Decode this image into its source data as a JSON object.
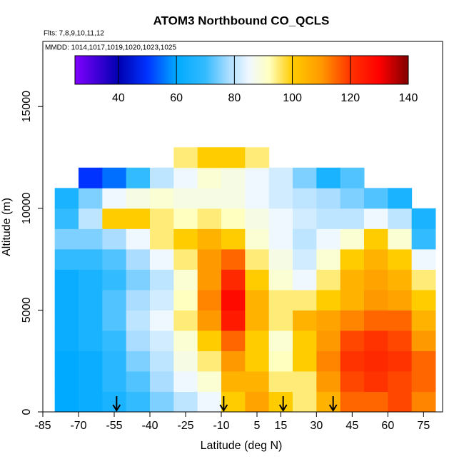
{
  "chart_data": {
    "type": "heatmap",
    "title": "ATOM3 Northbound CO_QCLS",
    "subtitle": "Flts: 7,8,9,10,11,12",
    "annotation": "MMDD: 1014,1017,1019,1020,1023,1025",
    "xlabel": "Latitude (deg N)",
    "ylabel": "Altitude (m)",
    "xlim": [
      -85,
      83
    ],
    "ylim": [
      0,
      18200
    ],
    "xticks": [
      -85,
      -70,
      -55,
      -40,
      -25,
      -10,
      5,
      15,
      30,
      45,
      60,
      75
    ],
    "yticks": [
      0,
      5000,
      10000,
      15000
    ],
    "xbins": [
      -80,
      -70,
      -60,
      -50,
      -40,
      -30,
      -20,
      -10,
      0,
      10,
      20,
      30,
      40,
      50,
      60,
      70,
      80
    ],
    "ybins": [
      0,
      1000,
      2000,
      3000,
      4000,
      5000,
      6000,
      7000,
      8000,
      9000,
      10000,
      11000,
      12000,
      13000
    ],
    "values": [
      [
        60,
        62,
        65,
        70,
        75,
        80,
        85,
        100,
        108,
        100,
        95,
        105,
        115,
        115,
        118,
        112
      ],
      [
        60,
        62,
        68,
        72,
        78,
        85,
        90,
        105,
        105,
        95,
        95,
        110,
        118,
        120,
        118,
        115
      ],
      [
        60,
        62,
        68,
        75,
        80,
        88,
        95,
        110,
        100,
        92,
        100,
        112,
        120,
        122,
        120,
        115
      ],
      [
        62,
        65,
        70,
        78,
        82,
        90,
        100,
        115,
        100,
        90,
        100,
        110,
        118,
        120,
        118,
        110
      ],
      [
        62,
        65,
        72,
        80,
        85,
        95,
        110,
        125,
        105,
        95,
        105,
        108,
        112,
        115,
        115,
        105
      ],
      [
        62,
        65,
        72,
        78,
        82,
        92,
        112,
        128,
        105,
        95,
        95,
        100,
        105,
        110,
        108,
        100
      ],
      [
        62,
        65,
        70,
        75,
        80,
        90,
        110,
        122,
        100,
        90,
        85,
        95,
        105,
        108,
        105,
        95
      ],
      [
        70,
        70,
        72,
        78,
        85,
        95,
        110,
        115,
        95,
        88,
        82,
        90,
        100,
        105,
        100,
        85
      ],
      [
        75,
        75,
        78,
        85,
        95,
        100,
        105,
        100,
        90,
        85,
        80,
        85,
        90,
        100,
        90,
        70
      ],
      [
        70,
        80,
        100,
        100,
        95,
        92,
        95,
        92,
        88,
        85,
        82,
        80,
        80,
        85,
        80,
        65
      ],
      [
        65,
        75,
        85,
        88,
        90,
        88,
        88,
        88,
        85,
        82,
        80,
        78,
        75,
        72,
        65,
        null
      ],
      [
        null,
        50,
        55,
        70,
        80,
        85,
        90,
        88,
        85,
        82,
        75,
        65,
        72,
        null,
        null,
        null
      ],
      [
        null,
        null,
        null,
        null,
        null,
        95,
        100,
        100,
        95,
        null,
        null,
        null,
        null,
        null,
        null,
        null
      ]
    ],
    "clim": [
      25,
      140
    ],
    "cticks": [
      40,
      60,
      80,
      100,
      120,
      140
    ],
    "colorscale": [
      [
        25,
        "#8000ff"
      ],
      [
        40,
        "#0000b0"
      ],
      [
        50,
        "#0033ff"
      ],
      [
        60,
        "#00aaff"
      ],
      [
        70,
        "#33bbff"
      ],
      [
        78,
        "#aaddff"
      ],
      [
        85,
        "#f0f8ff"
      ],
      [
        92,
        "#ffffc0"
      ],
      [
        100,
        "#ffcc00"
      ],
      [
        110,
        "#ff9900"
      ],
      [
        120,
        "#ff3300"
      ],
      [
        130,
        "#ff0000"
      ],
      [
        140,
        "#800000"
      ]
    ],
    "arrows": [
      -54,
      -9,
      16,
      37
    ]
  }
}
